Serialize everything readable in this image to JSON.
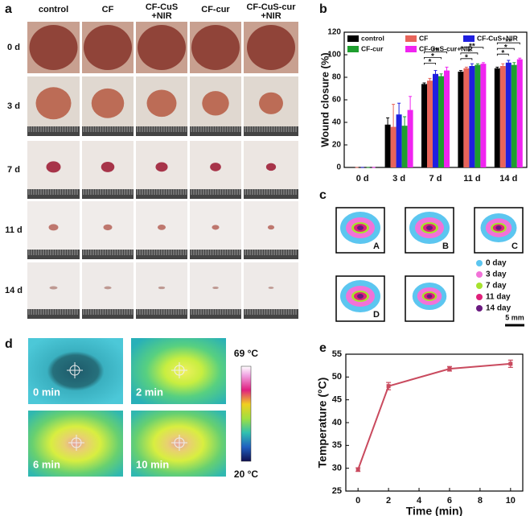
{
  "panel_a": {
    "letter": "a",
    "columns": [
      [
        "control"
      ],
      [
        "CF"
      ],
      [
        "CF-CuS",
        "+NIR"
      ],
      [
        "CF-cur"
      ],
      [
        "CF-CuS-cur",
        "+NIR"
      ]
    ],
    "rows": [
      "0 d",
      "3 d",
      "7 d",
      "11 d",
      "14 d"
    ]
  },
  "chart_data": [
    {
      "type": "bar",
      "letter": "b",
      "ylabel": "Wound closure (%)",
      "categories": [
        "0 d",
        "3 d",
        "7 d",
        "11 d",
        "14 d"
      ],
      "series": [
        {
          "name": "control",
          "color": "#000000",
          "values": [
            0,
            38,
            74,
            85,
            88
          ],
          "errors": [
            0,
            6,
            1,
            1,
            1
          ]
        },
        {
          "name": "CF",
          "color": "#e8645a",
          "values": [
            0,
            36,
            77,
            88,
            90
          ],
          "errors": [
            0,
            20,
            2,
            1,
            2
          ]
        },
        {
          "name": "CF-CuS+NIR",
          "color": "#1f1fe0",
          "values": [
            0,
            47,
            83,
            90,
            93
          ],
          "errors": [
            0,
            10,
            3,
            2,
            2
          ]
        },
        {
          "name": "CF-cur",
          "color": "#1e9e2e",
          "values": [
            0,
            37,
            81,
            91,
            91
          ],
          "errors": [
            0,
            8,
            2,
            1,
            2
          ]
        },
        {
          "name": "CF-CuS-cur+NIR",
          "color": "#f024f0",
          "values": [
            0,
            51,
            86,
            92,
            96
          ],
          "errors": [
            0,
            12,
            3,
            1,
            1
          ]
        }
      ],
      "significance": [
        null,
        null,
        [
          "*",
          "*",
          "**"
        ],
        [
          "*",
          "*",
          "**"
        ],
        [
          "*",
          "*",
          "**"
        ]
      ],
      "ylim": [
        0,
        120
      ],
      "yticks": [
        0,
        20,
        40,
        60,
        80,
        100,
        120
      ]
    },
    {
      "type": "line",
      "letter": "e",
      "xlabel": "Time (min)",
      "ylabel": "Temperature (°C)",
      "x": [
        0,
        2,
        6,
        10
      ],
      "values": [
        29.7,
        48,
        51.8,
        52.9
      ],
      "errors": [
        0.4,
        0.8,
        0.5,
        0.8
      ],
      "color": "#c94a5e",
      "xlim": [
        -0.8,
        10.8
      ],
      "xticks": [
        0,
        2,
        4,
        6,
        8,
        10
      ],
      "ylim": [
        25,
        55
      ],
      "yticks": [
        25,
        30,
        35,
        40,
        45,
        50,
        55
      ]
    }
  ],
  "panel_c": {
    "letter": "c",
    "boxes": [
      "A",
      "B",
      "C",
      "D",
      null
    ],
    "legend": [
      {
        "label": "0 day",
        "color": "#5cc6f0"
      },
      {
        "label": "3 day",
        "color": "#f272d8"
      },
      {
        "label": "7 day",
        "color": "#a6e22e"
      },
      {
        "label": "11 day",
        "color": "#e0207a"
      },
      {
        "label": "14 day",
        "color": "#6a1a80"
      }
    ],
    "scale": "5 mm"
  },
  "panel_d": {
    "letter": "d",
    "images": [
      "0 min",
      "2 min",
      "6 min",
      "10 min"
    ],
    "scale_max": "69 °C",
    "scale_min": "20 °C"
  }
}
